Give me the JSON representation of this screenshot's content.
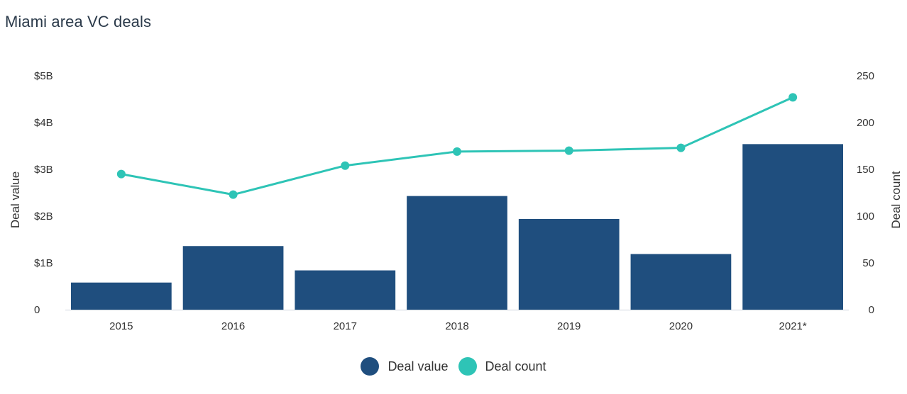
{
  "title": "Miami area VC deals",
  "chart_data": {
    "type": "bar",
    "categories": [
      "2015",
      "2016",
      "2017",
      "2018",
      "2019",
      "2020",
      "2021*"
    ],
    "series": [
      {
        "name": "Deal value",
        "type": "bar",
        "axis": "left",
        "color": "#1f4e7e",
        "values": [
          0.58,
          1.36,
          0.84,
          2.43,
          1.94,
          1.19,
          3.54
        ]
      },
      {
        "name": "Deal count",
        "type": "line",
        "axis": "right",
        "color": "#2ec4b6",
        "values": [
          145,
          123,
          154,
          169,
          170,
          173,
          227
        ]
      }
    ],
    "ylabel": "Deal value",
    "ylabel_right": "Deal count",
    "ylim": [
      0,
      5
    ],
    "ylim_right": [
      0,
      250
    ],
    "yticks": [
      "0",
      "$1B",
      "$2B",
      "$3B",
      "$4B",
      "$5B"
    ],
    "yticks_right": [
      "0",
      "50",
      "100",
      "150",
      "200",
      "250"
    ],
    "grid": false,
    "legend": "bottom-center"
  },
  "legend": [
    {
      "label": "Deal value",
      "color": "#1f4e7e"
    },
    {
      "label": "Deal count",
      "color": "#2ec4b6"
    }
  ]
}
